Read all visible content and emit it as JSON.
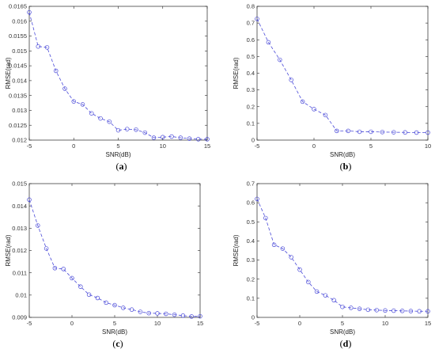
{
  "chart_data": [
    {
      "type": "line",
      "caption": "(a)",
      "xlabel": "SNR(dB)",
      "ylabel": "RMSE(rad)",
      "xlim": [
        -5,
        15
      ],
      "ylim": [
        0.012,
        0.0165
      ],
      "xticks": [
        "-5",
        "0",
        "5",
        "10",
        "15"
      ],
      "yticks": [
        "0.012",
        "0.0125",
        "0.013",
        "0.0135",
        "0.014",
        "0.0145",
        "0.015",
        "0.0155",
        "0.016",
        "0.0165"
      ],
      "series": [
        {
          "color": "#4a4ad8",
          "style": "dashed line with circle markers",
          "x": [
            -5,
            -4,
            -3,
            -2,
            -1,
            0,
            1,
            2,
            3,
            4,
            5,
            6,
            7,
            8,
            9,
            10,
            11,
            12,
            13,
            14,
            15
          ],
          "y": [
            0.0163,
            0.01515,
            0.01512,
            0.01433,
            0.01373,
            0.0133,
            0.0132,
            0.0129,
            0.01273,
            0.01262,
            0.01233,
            0.01237,
            0.01235,
            0.01225,
            0.01208,
            0.0121,
            0.01212,
            0.01208,
            0.01205,
            0.01203,
            0.01203
          ]
        }
      ]
    },
    {
      "type": "line",
      "caption": "(b)",
      "xlabel": "SNR(dB)",
      "ylabel": "RMSE(rad)",
      "xlim": [
        -5,
        10
      ],
      "ylim": [
        0,
        0.8
      ],
      "xticks": [
        "-5",
        "0",
        "5",
        "10"
      ],
      "yticks": [
        "0",
        "0.1",
        "0.2",
        "0.3",
        "0.4",
        "0.5",
        "0.6",
        "0.7",
        "0.8"
      ],
      "series": [
        {
          "color": "#4a4ad8",
          "style": "dashed line with circle markers",
          "x": [
            -5,
            -4,
            -3,
            -2,
            -1,
            0,
            1,
            2,
            3,
            4,
            5,
            6,
            7,
            8,
            9,
            10
          ],
          "y": [
            0.725,
            0.585,
            0.48,
            0.36,
            0.23,
            0.185,
            0.15,
            0.055,
            0.055,
            0.05,
            0.05,
            0.048,
            0.047,
            0.046,
            0.045,
            0.045
          ]
        }
      ]
    },
    {
      "type": "line",
      "caption": "(c)",
      "xlabel": "SNR(dB)",
      "ylabel": "RMSE(rad)",
      "xlim": [
        -5,
        15
      ],
      "ylim": [
        0.009,
        0.015
      ],
      "xticks": [
        "-5",
        "0",
        "5",
        "10",
        "15"
      ],
      "yticks": [
        "0.009",
        "0.01",
        "0.011",
        "0.012",
        "0.013",
        "0.014",
        "0.015"
      ],
      "series": [
        {
          "color": "#4a4ad8",
          "style": "dashed line with circle markers",
          "x": [
            -5,
            -4,
            -3,
            -2,
            -1,
            0,
            1,
            2,
            3,
            4,
            5,
            6,
            7,
            8,
            9,
            10,
            11,
            12,
            13,
            14,
            15
          ],
          "y": [
            0.01428,
            0.01312,
            0.01209,
            0.01121,
            0.01117,
            0.01076,
            0.01038,
            0.01002,
            0.00987,
            0.00966,
            0.00955,
            0.00943,
            0.00935,
            0.00925,
            0.00919,
            0.00918,
            0.00916,
            0.00912,
            0.00908,
            0.00904,
            0.00905
          ]
        }
      ]
    },
    {
      "type": "line",
      "caption": "(d)",
      "xlabel": "SNR(dB)",
      "ylabel": "RMSE(rad)",
      "xlim": [
        -5,
        15
      ],
      "ylim": [
        0,
        0.7
      ],
      "xticks": [
        "-5",
        "0",
        "5",
        "10",
        "15"
      ],
      "yticks": [
        "0",
        "0.1",
        "0.2",
        "0.3",
        "0.4",
        "0.5",
        "0.6",
        "0.7"
      ],
      "series": [
        {
          "color": "#4a4ad8",
          "style": "dashed line with circle markers",
          "x": [
            -5,
            -4,
            -3,
            -2,
            -1,
            0,
            1,
            2,
            3,
            4,
            5,
            6,
            7,
            8,
            9,
            10,
            11,
            12,
            13,
            14,
            15
          ],
          "y": [
            0.62,
            0.52,
            0.38,
            0.36,
            0.315,
            0.25,
            0.185,
            0.135,
            0.115,
            0.09,
            0.055,
            0.05,
            0.045,
            0.04,
            0.038,
            0.036,
            0.035,
            0.034,
            0.033,
            0.032,
            0.032
          ]
        }
      ]
    }
  ]
}
